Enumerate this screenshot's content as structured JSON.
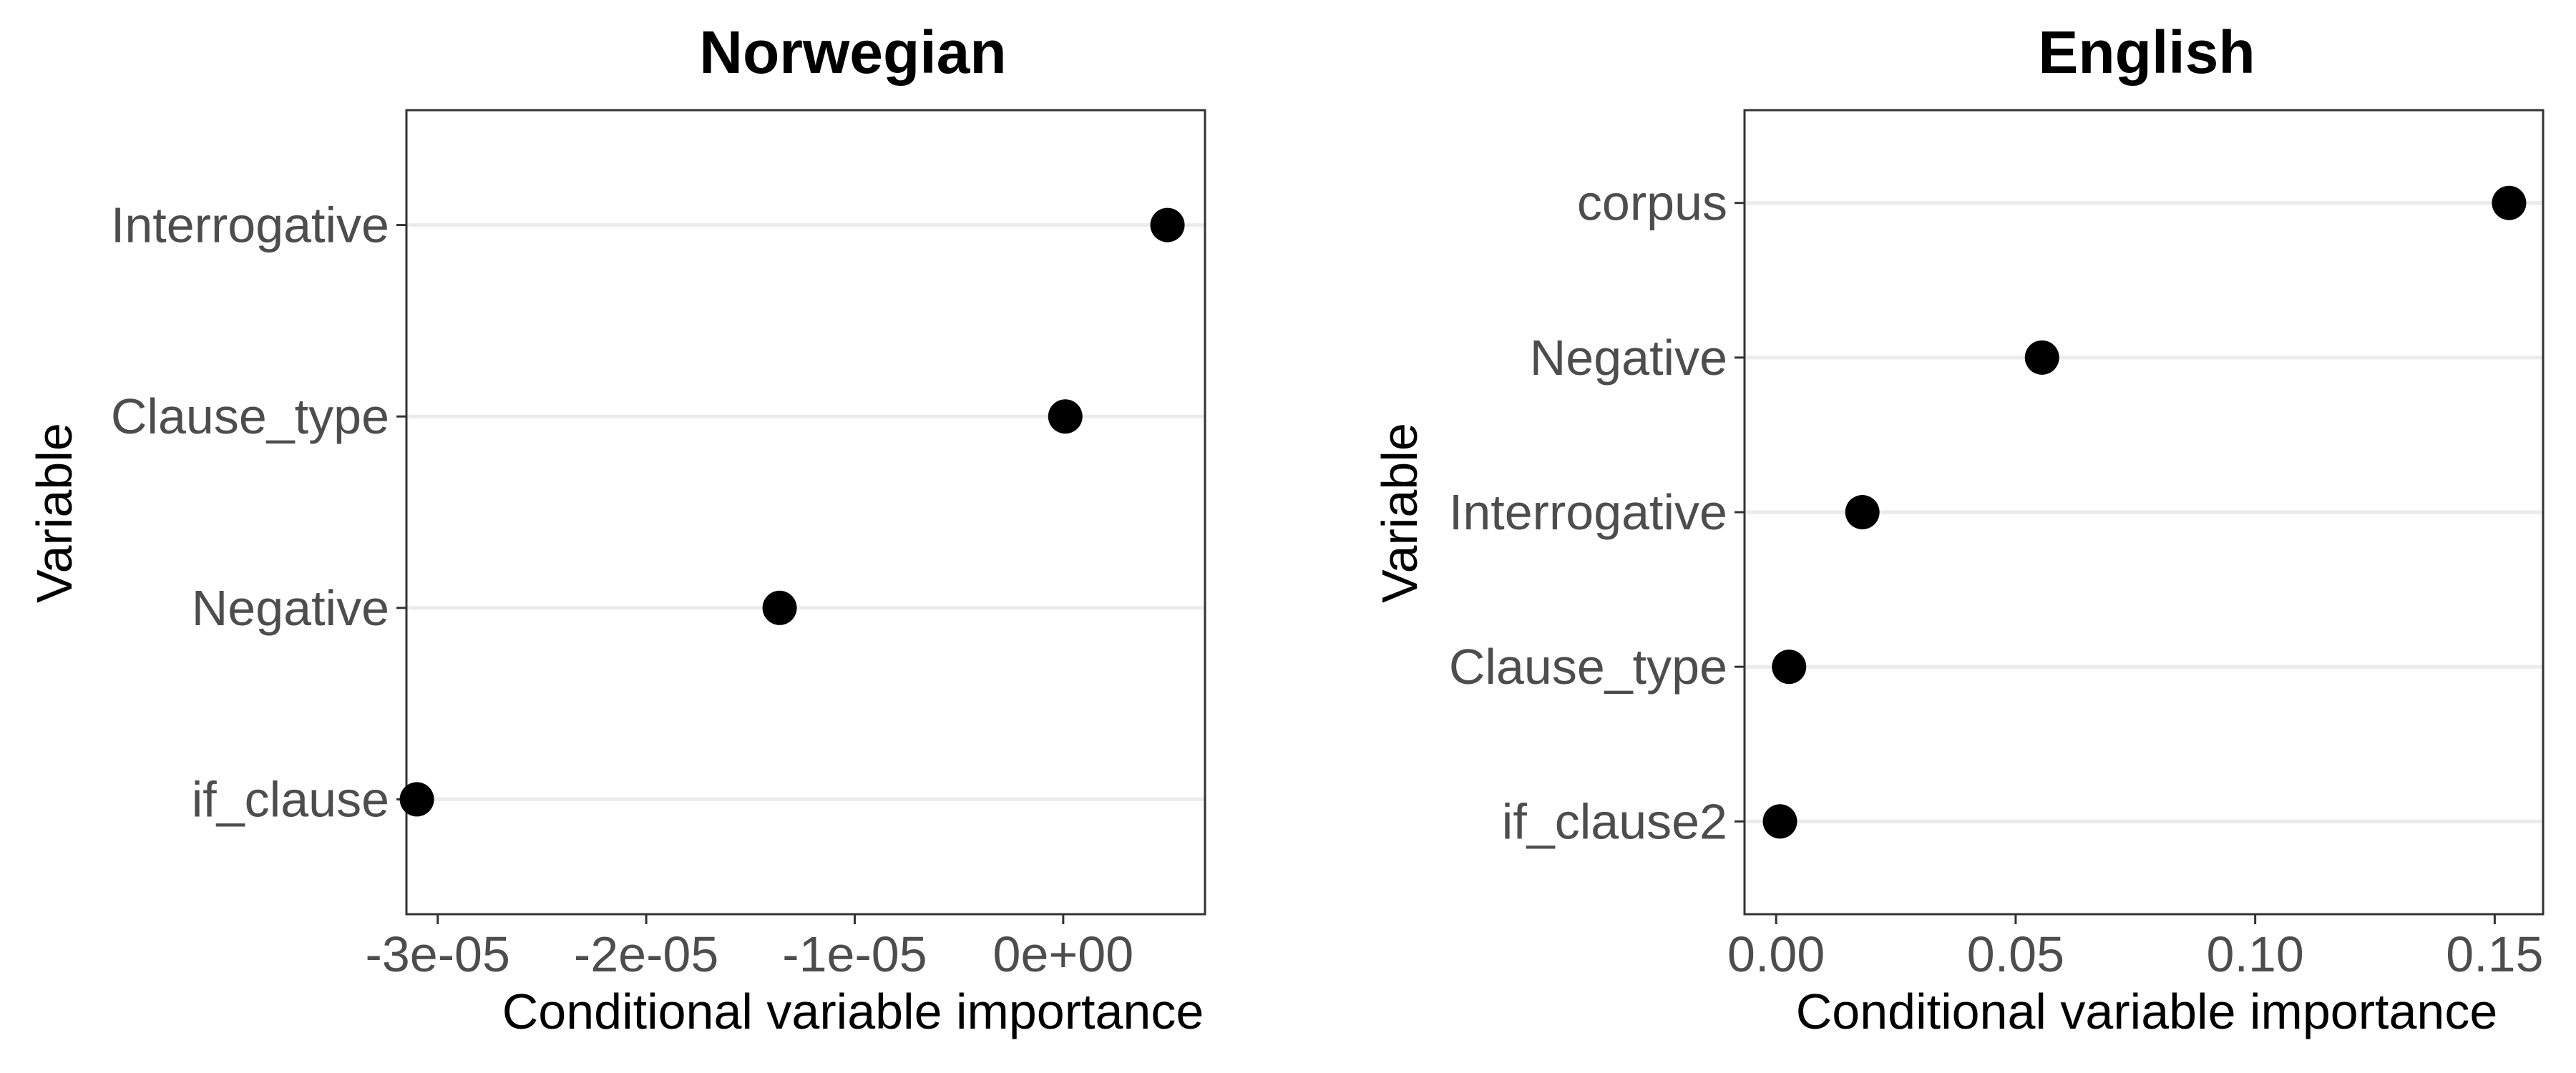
{
  "chart_data": [
    {
      "type": "scatter",
      "title": "Norwegian",
      "xlabel": "Conditional variable importance",
      "ylabel": "Variable",
      "xlim": [
        -3.15e-05,
        6.8e-06
      ],
      "x_ticks": [
        -3e-05,
        -2e-05,
        -1e-05,
        0
      ],
      "x_tick_labels": [
        "-3e-05",
        "-2e-05",
        "-1e-05",
        "0e+00"
      ],
      "categories": [
        "Interrogative",
        "Clause_type",
        "Negative",
        "if_clause"
      ],
      "values": [
        5e-06,
        1e-07,
        -1.36e-05,
        -3.1e-05
      ],
      "grid": true,
      "legend": "none"
    },
    {
      "type": "scatter",
      "title": "English",
      "xlabel": "Conditional variable importance",
      "ylabel": "Variable",
      "xlim": [
        -0.0066,
        0.1601
      ],
      "x_ticks": [
        0,
        0.05,
        0.1,
        0.15
      ],
      "x_tick_labels": [
        "0.00",
        "0.05",
        "0.10",
        "0.15"
      ],
      "categories": [
        "corpus",
        "Negative",
        "Interrogative",
        "Clause_type",
        "if_clause2"
      ],
      "values": [
        0.153,
        0.0555,
        0.018,
        0.0027,
        0.0008
      ],
      "grid": true,
      "legend": "none"
    }
  ]
}
